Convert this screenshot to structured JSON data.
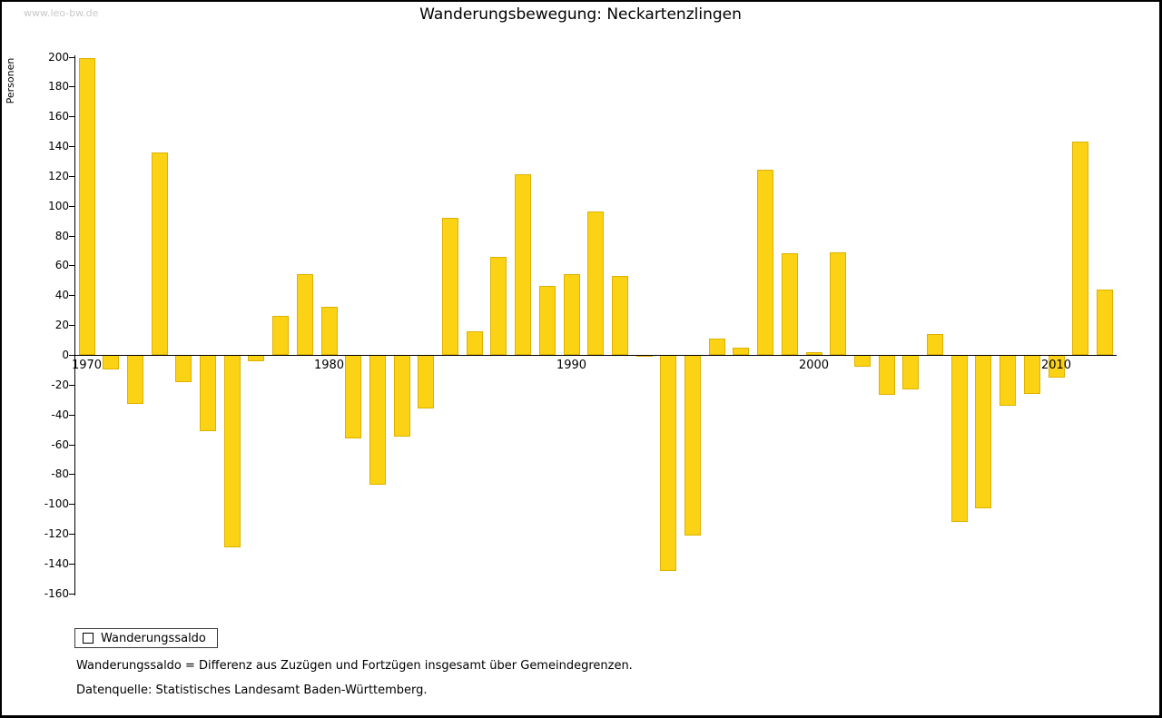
{
  "watermark": "www.leo-bw.de",
  "title": "Wanderungsbewegung: Neckartenzlingen",
  "y_axis_label": "Personen",
  "legend": {
    "label": "Wanderungssaldo"
  },
  "footnotes": [
    "Wanderungssaldo = Differenz aus Zuzügen und Fortzügen insgesamt über Gemeindegrenzen.",
    "Datenquelle: Statistisches Landesamt Baden-Württemberg."
  ],
  "colors": {
    "bar": "#FCD314",
    "bar_border": "#DDB100",
    "axis": "#000000",
    "watermark": "#C9C9C9"
  },
  "chart_data": {
    "type": "bar",
    "title": "Wanderungsbewegung: Neckartenzlingen",
    "xlabel": "",
    "ylabel": "Personen",
    "series_name": "Wanderungssaldo",
    "x": [
      1970,
      1971,
      1972,
      1973,
      1974,
      1975,
      1976,
      1977,
      1978,
      1979,
      1980,
      1981,
      1982,
      1983,
      1984,
      1985,
      1986,
      1987,
      1988,
      1989,
      1990,
      1991,
      1992,
      1993,
      1994,
      1995,
      1996,
      1997,
      1998,
      1999,
      2000,
      2001,
      2002,
      2003,
      2004,
      2005,
      2006,
      2007,
      2008,
      2009,
      2010,
      2011,
      2012
    ],
    "values": [
      199,
      -10,
      -33,
      136,
      -18,
      -51,
      -129,
      -4,
      26,
      54,
      32,
      -56,
      -87,
      -55,
      -36,
      92,
      16,
      66,
      121,
      46,
      54,
      96,
      53,
      -1,
      -145,
      -121,
      11,
      5,
      124,
      68,
      2,
      69,
      -8,
      -27,
      -23,
      14,
      -112,
      -103,
      -34,
      -26,
      -15,
      143,
      44
    ],
    "ylim": [
      -160,
      200
    ],
    "ytick_step": 20,
    "xticks": [
      1970,
      1980,
      1990,
      2000,
      2010
    ],
    "grid": false,
    "legend_position": "bottom-left"
  }
}
